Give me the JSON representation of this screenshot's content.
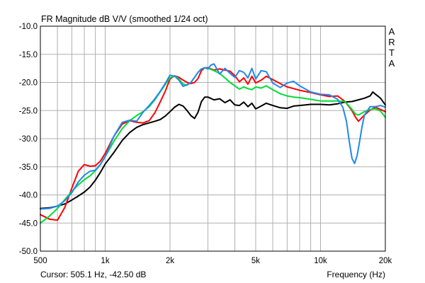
{
  "chart_data": {
    "type": "line",
    "title": "FR Magnitude dB V/V (smoothed 1/24 oct)",
    "watermark": [
      "A",
      "R",
      "T",
      "A"
    ],
    "xlabel": "Frequency (Hz)",
    "ylabel": "",
    "cursor_readout": "Cursor: 505.1 Hz, -42.50 dB",
    "x_scale": "log",
    "xlim": [
      500,
      20000
    ],
    "ylim": [
      -50,
      -10
    ],
    "grid": true,
    "x_ticks": [
      {
        "value": 500,
        "label": "500"
      },
      {
        "value": 1000,
        "label": "1k"
      },
      {
        "value": 2000,
        "label": "2k"
      },
      {
        "value": 5000,
        "label": "5k"
      },
      {
        "value": 10000,
        "label": "10k"
      },
      {
        "value": 20000,
        "label": "20k"
      }
    ],
    "y_ticks": [
      {
        "value": -10,
        "label": "-10.0"
      },
      {
        "value": -15,
        "label": "-15.0"
      },
      {
        "value": -20,
        "label": "-20.0"
      },
      {
        "value": -25,
        "label": "-25.0"
      },
      {
        "value": -30,
        "label": "-30.0"
      },
      {
        "value": -35,
        "label": "-35.0"
      },
      {
        "value": -40,
        "label": "-40.0"
      },
      {
        "value": -45,
        "label": "-45.0"
      },
      {
        "value": -50,
        "label": "-50.0"
      }
    ],
    "series": [
      {
        "color": "#000000",
        "x": [
          500,
          550,
          600,
          650,
          700,
          750,
          800,
          850,
          900,
          950,
          1000,
          1100,
          1200,
          1300,
          1400,
          1500,
          1600,
          1700,
          1800,
          1900,
          2000,
          2100,
          2200,
          2300,
          2400,
          2500,
          2600,
          2700,
          2800,
          2900,
          3000,
          3200,
          3400,
          3600,
          3800,
          4000,
          4200,
          4400,
          4600,
          4800,
          5000,
          5300,
          5600,
          6000,
          6500,
          7000,
          7500,
          8000,
          9000,
          10000,
          11000,
          12000,
          13000,
          14000,
          15000,
          16000,
          17000,
          17500,
          18000,
          19000,
          20000
        ],
        "y": [
          -42.4,
          -42.3,
          -42.0,
          -41.6,
          -40.9,
          -40.2,
          -39.5,
          -38.6,
          -37.4,
          -36.0,
          -34.5,
          -32.4,
          -30.3,
          -28.9,
          -28.0,
          -27.5,
          -27.2,
          -26.9,
          -26.6,
          -26.0,
          -25.2,
          -24.4,
          -23.9,
          -24.2,
          -25.0,
          -25.9,
          -26.4,
          -25.3,
          -23.4,
          -22.6,
          -22.6,
          -23.1,
          -22.9,
          -23.6,
          -23.1,
          -24.0,
          -24.1,
          -23.5,
          -24.3,
          -23.7,
          -24.7,
          -24.2,
          -23.7,
          -24.1,
          -24.5,
          -24.6,
          -24.2,
          -24.1,
          -23.9,
          -23.9,
          -24.0,
          -23.8,
          -23.5,
          -23.4,
          -23.1,
          -22.8,
          -22.4,
          -21.7,
          -22.1,
          -22.8,
          -24.0
        ]
      },
      {
        "color": "#ff0000",
        "x": [
          500,
          550,
          600,
          650,
          700,
          750,
          800,
          850,
          900,
          950,
          1000,
          1100,
          1200,
          1300,
          1400,
          1500,
          1600,
          1700,
          1800,
          1900,
          2000,
          2100,
          2200,
          2300,
          2400,
          2500,
          2600,
          2700,
          2800,
          2900,
          3000,
          3200,
          3400,
          3600,
          3800,
          4000,
          4200,
          4400,
          4600,
          4800,
          5000,
          5300,
          5600,
          6000,
          6500,
          7000,
          7500,
          8000,
          9000,
          10000,
          11000,
          12000,
          13000,
          14000,
          14500,
          15000,
          16000,
          17000,
          18000,
          19000,
          20000
        ],
        "y": [
          -43.5,
          -44.3,
          -44.5,
          -42.2,
          -38.8,
          -35.8,
          -34.6,
          -34.9,
          -34.8,
          -34.0,
          -32.6,
          -29.5,
          -27.4,
          -26.8,
          -27.1,
          -27.2,
          -26.8,
          -25.4,
          -23.5,
          -21.6,
          -19.4,
          -18.8,
          -19.1,
          -19.6,
          -20.0,
          -20.2,
          -20.0,
          -19.3,
          -17.9,
          -17.4,
          -17.4,
          -17.8,
          -17.6,
          -17.8,
          -18.0,
          -18.8,
          -19.9,
          -19.2,
          -20.3,
          -18.9,
          -20.1,
          -19.6,
          -18.9,
          -19.5,
          -20.2,
          -20.8,
          -21.1,
          -21.4,
          -21.8,
          -22.2,
          -22.5,
          -22.4,
          -23.4,
          -25.0,
          -26.1,
          -26.9,
          -25.8,
          -24.9,
          -24.4,
          -24.8,
          -25.2
        ]
      },
      {
        "color": "#00dd33",
        "x": [
          500,
          550,
          600,
          650,
          700,
          750,
          800,
          850,
          900,
          950,
          1000,
          1100,
          1200,
          1300,
          1400,
          1500,
          1600,
          1700,
          1800,
          1900,
          2000,
          2100,
          2200,
          2300,
          2400,
          2500,
          2600,
          2700,
          2800,
          2900,
          3000,
          3200,
          3400,
          3600,
          3800,
          4000,
          4200,
          4400,
          4600,
          4800,
          5000,
          5300,
          5600,
          6000,
          6500,
          7000,
          7500,
          8000,
          9000,
          10000,
          11000,
          12000,
          13000,
          14000,
          14500,
          15000,
          16000,
          17000,
          18000,
          19000,
          20000
        ],
        "y": [
          -45.0,
          -43.8,
          -42.4,
          -40.8,
          -39.4,
          -38.2,
          -37.3,
          -36.6,
          -35.7,
          -34.6,
          -33.2,
          -30.4,
          -28.2,
          -26.8,
          -25.9,
          -25.2,
          -24.3,
          -23.1,
          -21.7,
          -20.4,
          -19.2,
          -18.8,
          -19.4,
          -20.3,
          -20.5,
          -20.0,
          -19.1,
          -18.2,
          -17.6,
          -17.4,
          -17.5,
          -17.9,
          -18.4,
          -19.2,
          -20.0,
          -20.6,
          -21.2,
          -20.8,
          -21.1,
          -21.3,
          -20.8,
          -21.0,
          -20.6,
          -21.3,
          -22.0,
          -22.4,
          -22.6,
          -22.7,
          -23.0,
          -23.3,
          -23.3,
          -23.3,
          -23.4,
          -24.8,
          -25.6,
          -25.8,
          -25.2,
          -24.8,
          -24.7,
          -25.1,
          -26.2
        ]
      },
      {
        "color": "#2288ee",
        "x": [
          500,
          550,
          600,
          650,
          700,
          750,
          800,
          850,
          900,
          950,
          1000,
          1100,
          1200,
          1300,
          1400,
          1500,
          1600,
          1700,
          1800,
          1900,
          2000,
          2100,
          2200,
          2300,
          2400,
          2500,
          2600,
          2700,
          2800,
          2900,
          3000,
          3100,
          3200,
          3400,
          3600,
          3800,
          4000,
          4200,
          4400,
          4600,
          4800,
          5000,
          5300,
          5600,
          6000,
          6500,
          7000,
          7500,
          8000,
          9000,
          10000,
          11000,
          12000,
          12700,
          13200,
          13600,
          14000,
          14400,
          14800,
          15200,
          15600,
          16000,
          17000,
          18000,
          19000,
          20000
        ],
        "y": [
          -42.5,
          -42.4,
          -42.0,
          -41.0,
          -39.6,
          -37.7,
          -36.5,
          -35.8,
          -35.6,
          -34.6,
          -33.2,
          -29.5,
          -27.1,
          -26.7,
          -26.9,
          -25.3,
          -24.1,
          -22.9,
          -21.6,
          -20.2,
          -18.7,
          -18.9,
          -19.6,
          -20.7,
          -20.4,
          -20.0,
          -19.1,
          -18.2,
          -17.6,
          -17.4,
          -17.6,
          -16.9,
          -16.7,
          -18.5,
          -17.5,
          -18.4,
          -19.1,
          -17.9,
          -18.2,
          -19.2,
          -17.5,
          -19.4,
          -17.9,
          -18.1,
          -20.1,
          -20.9,
          -20.1,
          -19.8,
          -20.6,
          -21.7,
          -22.1,
          -22.2,
          -23.0,
          -24.4,
          -26.9,
          -30.5,
          -33.5,
          -34.4,
          -33.0,
          -30.4,
          -27.8,
          -25.8,
          -24.3,
          -24.3,
          -24.1,
          -24.4
        ]
      }
    ]
  }
}
